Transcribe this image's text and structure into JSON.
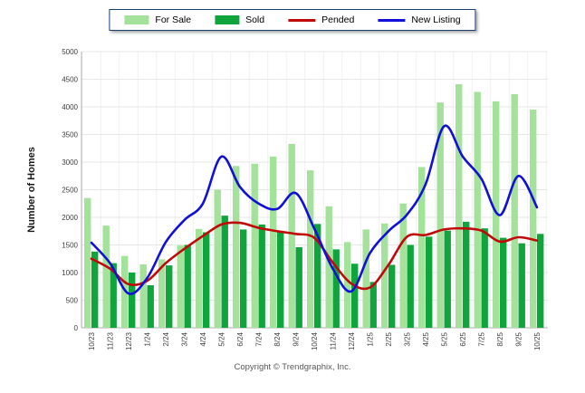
{
  "footer": "Copyright © Trendgraphix, Inc.",
  "y_axis": {
    "title": "Number of Homes",
    "min": 0,
    "max": 5000,
    "step": 500
  },
  "colors": {
    "for_sale": "#a4e19a",
    "sold": "#10a43c",
    "pended": "#c00a0a",
    "new_listing": "#1010d8",
    "grid": "#e7e7e7",
    "grid_vertical": "#f0f0f0",
    "axis": "#b0b0b0",
    "tick_text": "#404040"
  },
  "chart_data": {
    "type": "bar",
    "subtype": "grouped-bars-with-smooth-lines",
    "title": "",
    "xlabel": "",
    "ylabel": "Number of Homes",
    "ylim": [
      0,
      5000
    ],
    "ytick_step": 500,
    "grid": true,
    "legend_position": "top-center",
    "categories": [
      "10/23",
      "11/23",
      "12/23",
      "1/24",
      "2/24",
      "3/24",
      "4/24",
      "5/24",
      "6/24",
      "7/24",
      "8/24",
      "9/24",
      "10/24",
      "11/24",
      "12/24",
      "1/25",
      "2/25",
      "3/25",
      "4/25",
      "5/25",
      "6/25",
      "7/25",
      "8/25",
      "9/25",
      "10/25"
    ],
    "series": [
      {
        "name": "For Sale",
        "type": "bar",
        "color_key": "for_sale",
        "values": [
          2350,
          1850,
          1300,
          1150,
          1240,
          1490,
          1790,
          2500,
          2930,
          2970,
          3100,
          3330,
          2850,
          2200,
          1550,
          1780,
          1890,
          2250,
          2910,
          4080,
          4410,
          4270,
          4100,
          4230,
          3950
        ]
      },
      {
        "name": "Sold",
        "type": "bar",
        "color_key": "sold",
        "values": [
          1380,
          1170,
          1000,
          770,
          1130,
          1500,
          1730,
          2030,
          1780,
          1870,
          1750,
          1460,
          1880,
          1420,
          1160,
          830,
          1140,
          1500,
          1650,
          1760,
          1920,
          1800,
          1630,
          1530,
          1700
        ]
      },
      {
        "name": "Pended",
        "type": "line",
        "color_key": "pended",
        "values": [
          1250,
          1070,
          790,
          850,
          1170,
          1430,
          1660,
          1870,
          1900,
          1810,
          1750,
          1700,
          1630,
          1180,
          800,
          730,
          1140,
          1650,
          1680,
          1780,
          1800,
          1760,
          1560,
          1640,
          1580
        ]
      },
      {
        "name": "New Listing",
        "type": "line",
        "color_key": "new_listing",
        "values": [
          1540,
          1170,
          620,
          900,
          1550,
          1950,
          2250,
          3100,
          2550,
          2250,
          2150,
          2440,
          1800,
          1070,
          660,
          1350,
          1750,
          2050,
          2600,
          3650,
          3100,
          2700,
          2040,
          2750,
          2180
        ]
      }
    ]
  }
}
